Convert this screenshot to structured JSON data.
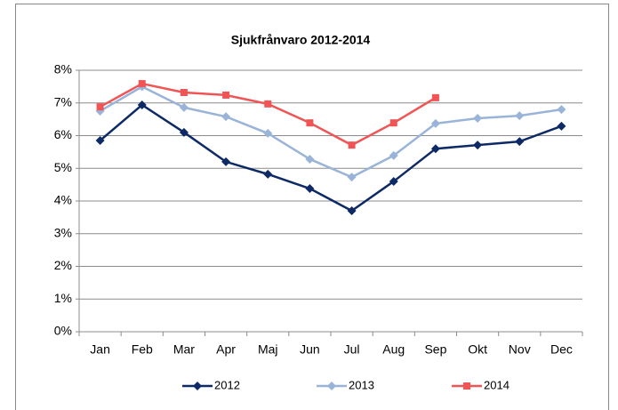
{
  "chart_data": {
    "type": "line",
    "title": "Sjukfrånvaro 2012-2014",
    "categories": [
      "Jan",
      "Feb",
      "Mar",
      "Apr",
      "Maj",
      "Jun",
      "Jul",
      "Aug",
      "Sep",
      "Okt",
      "Nov",
      "Dec"
    ],
    "series": [
      {
        "name": "2012",
        "color": "#0d2a66",
        "marker": "diamond",
        "values": [
          5.85,
          6.94,
          6.1,
          5.2,
          4.82,
          4.38,
          3.7,
          4.6,
          5.6,
          5.71,
          5.82,
          6.29
        ]
      },
      {
        "name": "2013",
        "color": "#9ab3d9",
        "marker": "diamond",
        "values": [
          6.75,
          7.5,
          6.86,
          6.58,
          6.07,
          5.28,
          4.73,
          5.39,
          6.37,
          6.53,
          6.61,
          6.8
        ]
      },
      {
        "name": "2014",
        "color": "#f05454",
        "marker": "square",
        "values": [
          6.88,
          7.59,
          7.32,
          7.24,
          6.97,
          6.39,
          5.71,
          6.39,
          7.16,
          null,
          null,
          null
        ]
      }
    ],
    "ylim": [
      0,
      8
    ],
    "yticks": [
      {
        "value": 0,
        "label": "0%"
      },
      {
        "value": 1,
        "label": "1%"
      },
      {
        "value": 2,
        "label": "2%"
      },
      {
        "value": 3,
        "label": "3%"
      },
      {
        "value": 4,
        "label": "4%"
      },
      {
        "value": 5,
        "label": "5%"
      },
      {
        "value": 6,
        "label": "6%"
      },
      {
        "value": 7,
        "label": "7%"
      },
      {
        "value": 8,
        "label": "8%"
      }
    ],
    "grid": true,
    "legend": "bottom"
  }
}
